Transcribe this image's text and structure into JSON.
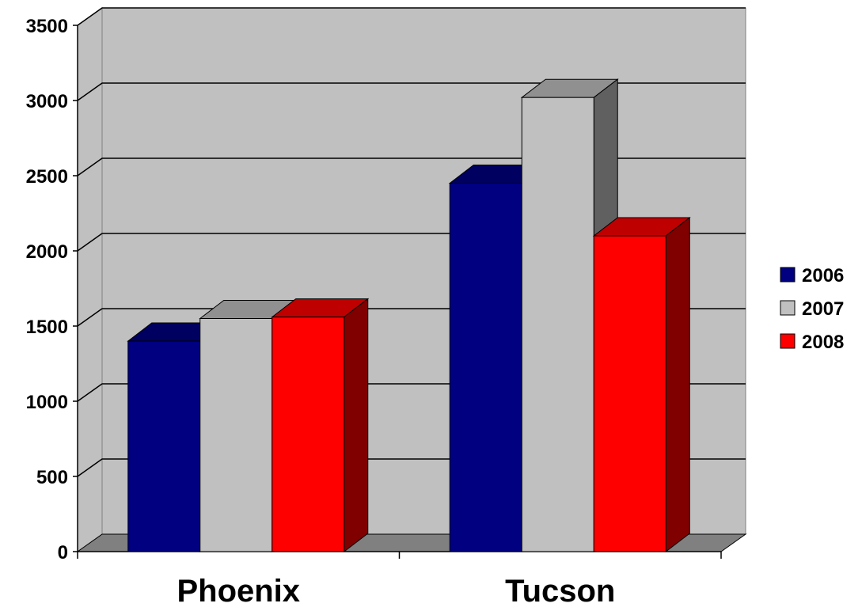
{
  "chart_data": {
    "type": "bar",
    "categories": [
      "Phoenix",
      "Tucson"
    ],
    "series": [
      {
        "name": "2006",
        "values": [
          1400,
          2450
        ],
        "color": "#000080"
      },
      {
        "name": "2007",
        "values": [
          1550,
          3020
        ],
        "color": "#c0c0c0"
      },
      {
        "name": "2008",
        "values": [
          1560,
          2100
        ],
        "color": "#ff0000"
      }
    ],
    "yticks": [
      "0",
      "500",
      "1000",
      "1500",
      "2000",
      "2500",
      "3000",
      "3500"
    ],
    "ylim": [
      0,
      3500
    ],
    "grid": true,
    "legend_position": "right",
    "style": "3d-clustered-column"
  }
}
